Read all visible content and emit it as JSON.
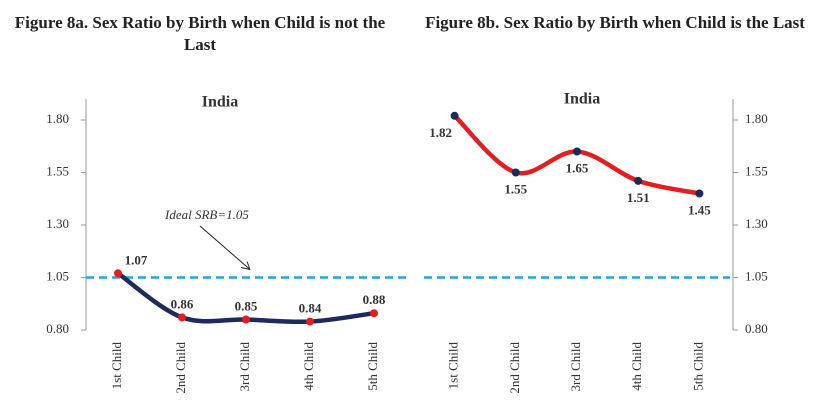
{
  "chart_data": [
    {
      "type": "line",
      "title": "Figure 8a. Sex Ratio by Birth when Child is not the Last",
      "subtitle": "India",
      "categories": [
        "1st Child",
        "2nd Child",
        "3rd Child",
        "4th Child",
        "5th Child"
      ],
      "series": [
        {
          "color": "#1c2a5e",
          "marker_color": "#e41e1e",
          "label_color": "#e41e1e",
          "values": [
            1.07,
            0.86,
            0.85,
            0.84,
            0.88
          ]
        }
      ],
      "ylim": [
        0.8,
        1.9
      ],
      "yticks": [
        {
          "value": 0.8,
          "label": "0.80"
        },
        {
          "value": 1.05,
          "label": "1.05"
        },
        {
          "value": 1.3,
          "label": "1.30"
        },
        {
          "value": 1.55,
          "label": "1.55"
        },
        {
          "value": 1.8,
          "label": "1.80"
        }
      ],
      "axis_side": "left",
      "reference_line": {
        "value": 1.05,
        "label": "Ideal SRB=1.05",
        "color": "#1fa7e0"
      }
    },
    {
      "type": "line",
      "title": "Figure 8b. Sex Ratio by Birth when Child is the Last",
      "subtitle": "India",
      "categories": [
        "1st Child",
        "2nd Child",
        "3rd Child",
        "4th Child",
        "5th Child"
      ],
      "series": [
        {
          "color": "#e41e1e",
          "marker_color": "#1c2a5e",
          "label_color": "#1c2a5e",
          "values": [
            1.82,
            1.55,
            1.65,
            1.51,
            1.45
          ]
        }
      ],
      "ylim": [
        0.8,
        1.9
      ],
      "yticks": [
        {
          "value": 0.8,
          "label": "0.80"
        },
        {
          "value": 1.05,
          "label": "1.05"
        },
        {
          "value": 1.3,
          "label": "1.30"
        },
        {
          "value": 1.55,
          "label": "1.55"
        },
        {
          "value": 1.8,
          "label": "1.80"
        }
      ],
      "axis_side": "right",
      "reference_line": {
        "value": 1.05,
        "color": "#1fa7e0"
      }
    }
  ]
}
